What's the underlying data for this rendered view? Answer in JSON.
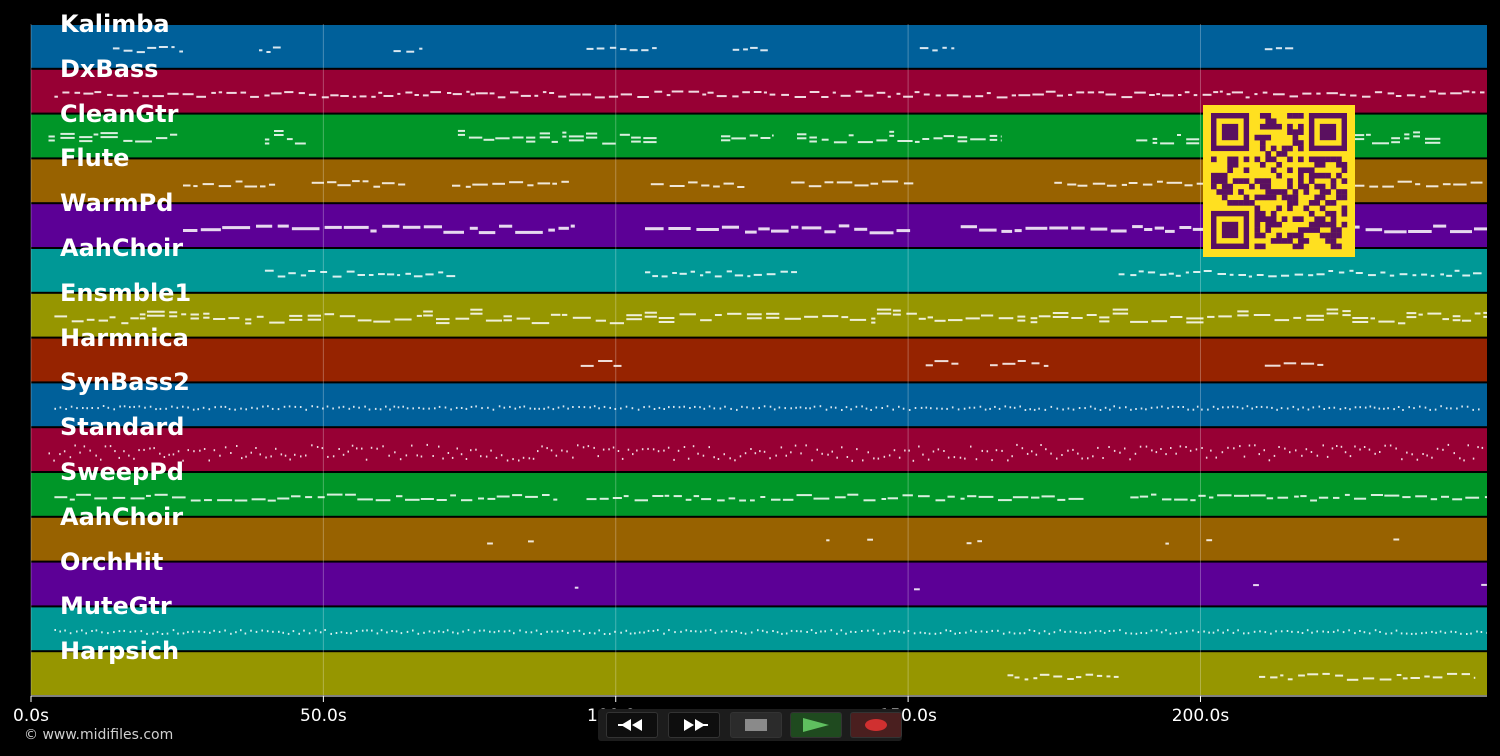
{
  "timeline": {
    "duration_s": 249,
    "tick_labels": [
      "0.0s",
      "50.0s",
      "100.0s",
      "150.0s",
      "200.0s"
    ],
    "tick_values_s": [
      0,
      50,
      100,
      150,
      200
    ]
  },
  "tracks": [
    {
      "name": "Kalimba",
      "color": "#00609a"
    },
    {
      "name": "DxBass",
      "color": "#970034"
    },
    {
      "name": "CleanGtr",
      "color": "#009628"
    },
    {
      "name": "Flute",
      "color": "#986200"
    },
    {
      "name": "WarmPd",
      "color": "#5c0096"
    },
    {
      "name": "AahChoir",
      "color": "#009896"
    },
    {
      "name": "Ensmble1",
      "color": "#969600"
    },
    {
      "name": "Harmnica",
      "color": "#962300"
    },
    {
      "name": "SynBass2",
      "color": "#00609a"
    },
    {
      "name": "Standard",
      "color": "#970034"
    },
    {
      "name": "SweepPd",
      "color": "#009628"
    },
    {
      "name": "AahChoir",
      "color": "#986200"
    },
    {
      "name": "OrchHit",
      "color": "#5c0096"
    },
    {
      "name": "MuteGtr",
      "color": "#009896"
    },
    {
      "name": "Harpsich",
      "color": "#969600"
    }
  ],
  "note_pattern": {
    "Kalimba": {
      "segments": [
        [
          14,
          26
        ],
        [
          39,
          43
        ],
        [
          62,
          67
        ],
        [
          95,
          107
        ],
        [
          120,
          126
        ],
        [
          152,
          158
        ],
        [
          211,
          216
        ]
      ],
      "style": "sparse"
    },
    "DxBass": {
      "segments": [
        [
          4,
          249
        ]
      ],
      "style": "dense"
    },
    "CleanGtr": {
      "segments": [
        [
          3,
          25
        ],
        [
          40,
          47
        ],
        [
          73,
          107
        ],
        [
          118,
          127
        ],
        [
          131,
          166
        ],
        [
          189,
          241
        ]
      ],
      "style": "chords"
    },
    "Flute": {
      "segments": [
        [
          26,
          42
        ],
        [
          48,
          64
        ],
        [
          72,
          92
        ],
        [
          106,
          122
        ],
        [
          130,
          151
        ],
        [
          175,
          249
        ]
      ],
      "style": "line"
    },
    "WarmPd": {
      "segments": [
        [
          26,
          93
        ],
        [
          105,
          151
        ],
        [
          159,
          249
        ]
      ],
      "style": "thick"
    },
    "AahChoir": {
      "segments": [
        [
          40,
          73
        ],
        [
          105,
          131
        ],
        [
          186,
          249
        ]
      ],
      "style": "sparse"
    },
    "Ensmble1": {
      "segments": [
        [
          4,
          249
        ]
      ],
      "style": "chords"
    },
    "Harmnica": {
      "segments": [
        [
          94,
          101
        ],
        [
          153,
          159
        ],
        [
          164,
          174
        ],
        [
          211,
          221
        ]
      ],
      "style": "line"
    },
    "SynBass2": {
      "segments": [
        [
          4,
          248
        ]
      ],
      "style": "dots"
    },
    "Standard": {
      "segments": [
        [
          3,
          249
        ]
      ],
      "style": "drums"
    },
    "SweepPd": {
      "segments": [
        [
          4,
          90
        ],
        [
          95,
          180
        ],
        [
          188,
          249
        ]
      ],
      "style": "line"
    },
    "AahChoir2": {
      "segments": [
        [
          78,
          79
        ],
        [
          85,
          86
        ],
        [
          136,
          137
        ],
        [
          143,
          144
        ],
        [
          160,
          163
        ],
        [
          194,
          195
        ],
        [
          201,
          202
        ],
        [
          233,
          234
        ]
      ],
      "style": "sparse"
    },
    "OrchHit": {
      "segments": [
        [
          93,
          94
        ],
        [
          151,
          152
        ],
        [
          209,
          210
        ],
        [
          248,
          249
        ]
      ],
      "style": "sparse"
    },
    "MuteGtr": {
      "segments": [
        [
          4,
          249
        ]
      ],
      "style": "dots"
    },
    "Harpsich": {
      "segments": [
        [
          167,
          186
        ],
        [
          210,
          247
        ]
      ],
      "style": "dense"
    }
  },
  "copyright": "© www.midifiles.com",
  "transport": {
    "rewind_icon": "rewind-icon",
    "fast_forward_icon": "fast-forward-icon",
    "stop_icon": "stop-icon",
    "play_icon": "play-icon",
    "record_icon": "record-icon",
    "colors": {
      "play": "#5fbf5f",
      "record": "#d03030",
      "stop": "#8a8a8a"
    }
  },
  "qr_code": {
    "foreground": "#5a1060",
    "background": "#ffe020"
  }
}
